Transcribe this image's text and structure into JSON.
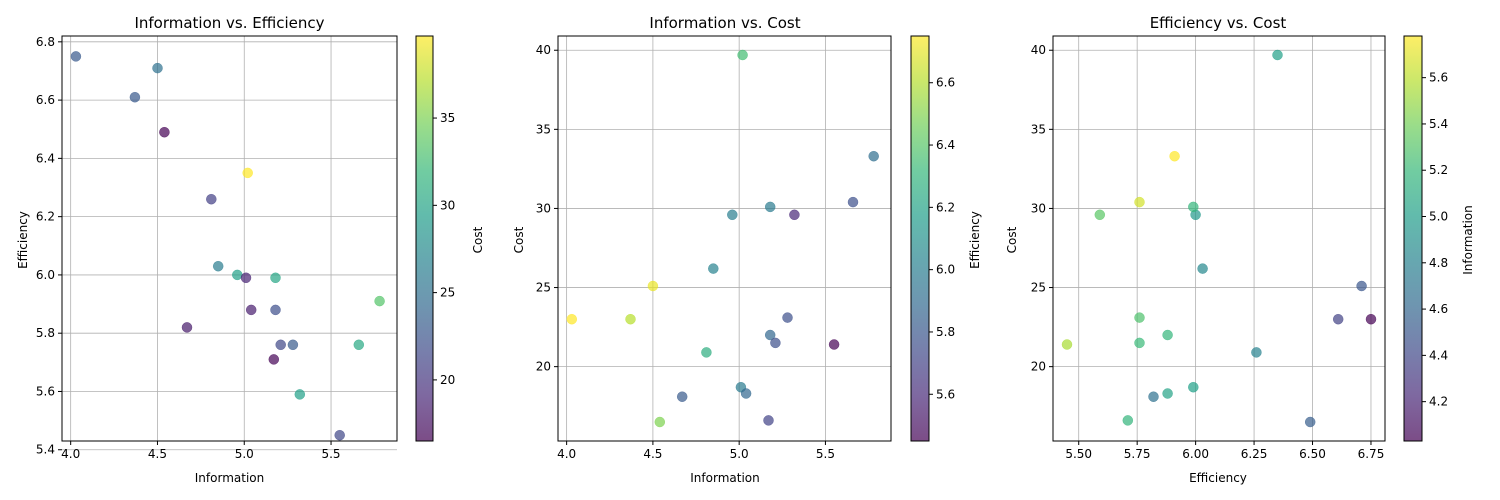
{
  "colormap": [
    "#440154",
    "#482878",
    "#3e4989",
    "#31688e",
    "#26828e",
    "#1f9e89",
    "#35b779",
    "#6ece58",
    "#b5de2b",
    "#fde725"
  ],
  "marker_alpha": 0.7,
  "grid": true,
  "points": {
    "information": [
      4.03,
      4.37,
      4.5,
      4.54,
      4.67,
      4.81,
      4.85,
      4.96,
      5.01,
      5.02,
      5.04,
      5.17,
      5.18,
      5.18,
      5.21,
      5.28,
      5.32,
      5.55,
      5.66,
      5.78
    ],
    "efficiency": [
      6.75,
      6.61,
      6.71,
      6.49,
      5.82,
      6.26,
      6.03,
      6.0,
      5.99,
      6.35,
      5.88,
      5.71,
      5.88,
      5.99,
      5.76,
      5.76,
      5.59,
      5.45,
      5.76,
      5.91
    ],
    "cost": [
      23.0,
      23.0,
      25.1,
      16.5,
      18.1,
      20.9,
      26.2,
      29.6,
      18.7,
      39.7,
      18.3,
      16.6,
      22.0,
      30.1,
      21.5,
      23.1,
      29.6,
      21.4,
      30.4,
      33.3
    ]
  },
  "chart_data": [
    {
      "type": "scatter",
      "title": "Information vs. Efficiency",
      "xlabel": "Information",
      "ylabel": "Efficiency",
      "x_field": "information",
      "y_field": "efficiency",
      "color_field": "cost",
      "colorbar_label": "Cost",
      "xlim": [
        3.95,
        5.88
      ],
      "ylim": [
        5.43,
        6.82
      ],
      "xticks": [
        4.0,
        4.5,
        5.0,
        5.5
      ],
      "xtick_labels": [
        "4.0",
        "4.5",
        "5.0",
        "5.5"
      ],
      "yticks": [
        5.4,
        5.6,
        5.8,
        6.0,
        6.2,
        6.4,
        6.6,
        6.8
      ],
      "ytick_labels": [
        "5.4",
        "5.6",
        "5.8",
        "6.0",
        "6.2",
        "6.4",
        "6.6",
        "6.8"
      ],
      "clim": [
        16.5,
        39.7
      ],
      "cticks": [
        20,
        25,
        30,
        35
      ],
      "ctick_labels": [
        "20",
        "25",
        "30",
        "35"
      ]
    },
    {
      "type": "scatter",
      "title": "Information vs. Cost",
      "xlabel": "Information",
      "ylabel": "Cost",
      "x_field": "information",
      "y_field": "cost",
      "color_field": "efficiency",
      "colorbar_label": "Efficiency",
      "xlim": [
        3.95,
        5.88
      ],
      "ylim": [
        15.3,
        40.9
      ],
      "xticks": [
        4.0,
        4.5,
        5.0,
        5.5
      ],
      "xtick_labels": [
        "4.0",
        "4.5",
        "5.0",
        "5.5"
      ],
      "yticks": [
        20,
        25,
        30,
        35,
        40
      ],
      "ytick_labels": [
        "20",
        "25",
        "30",
        "35",
        "40"
      ],
      "clim": [
        5.45,
        6.75
      ],
      "cticks": [
        5.6,
        5.8,
        6.0,
        6.2,
        6.4,
        6.6
      ],
      "ctick_labels": [
        "5.6",
        "5.8",
        "6.0",
        "6.2",
        "6.4",
        "6.6"
      ]
    },
    {
      "type": "scatter",
      "title": "Efficiency vs. Cost",
      "xlabel": "Efficiency",
      "ylabel": "Cost",
      "x_field": "efficiency",
      "y_field": "cost",
      "color_field": "information",
      "colorbar_label": "Information",
      "xlim": [
        5.39,
        6.81
      ],
      "ylim": [
        15.3,
        40.9
      ],
      "xticks": [
        5.5,
        5.75,
        6.0,
        6.25,
        6.5,
        6.75
      ],
      "xtick_labels": [
        "5.50",
        "5.75",
        "6.00",
        "6.25",
        "6.50",
        "6.75"
      ],
      "yticks": [
        20,
        25,
        30,
        35,
        40
      ],
      "ytick_labels": [
        "20",
        "25",
        "30",
        "35",
        "40"
      ],
      "clim": [
        4.03,
        5.78
      ],
      "cticks": [
        4.2,
        4.4,
        4.6,
        4.8,
        5.0,
        5.2,
        5.4,
        5.6
      ],
      "ctick_labels": [
        "4.2",
        "4.4",
        "4.6",
        "4.8",
        "5.0",
        "5.2",
        "5.4",
        "5.6"
      ]
    }
  ]
}
